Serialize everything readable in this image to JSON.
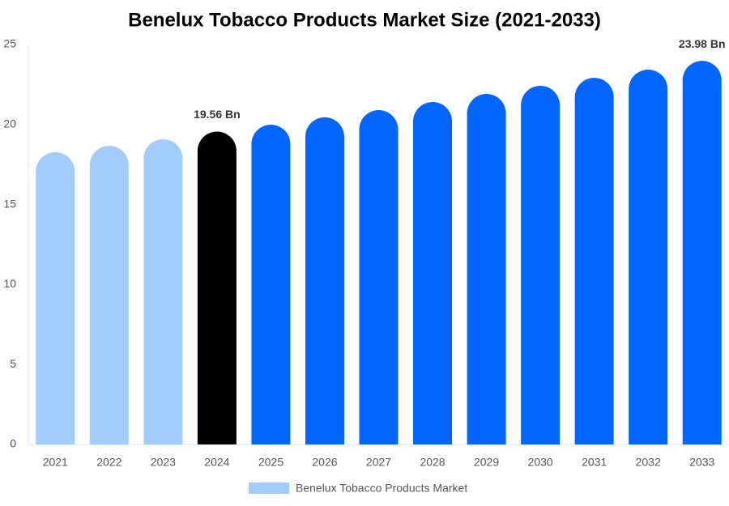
{
  "chart_data": {
    "type": "bar",
    "title": "Benelux Tobacco Products Market Size (2021-2033)",
    "categories": [
      "2021",
      "2022",
      "2023",
      "2024",
      "2025",
      "2026",
      "2027",
      "2028",
      "2029",
      "2030",
      "2031",
      "2032",
      "2033"
    ],
    "series": [
      {
        "name": "Benelux Tobacco Products Market",
        "color": "#a0cbfa",
        "values": [
          18.27,
          18.67,
          19.08,
          19.56,
          19.99,
          20.45,
          20.9,
          21.41,
          21.91,
          22.42,
          22.92,
          23.43,
          23.98
        ],
        "value_labels": [
          null,
          null,
          null,
          "19.56 Bn",
          null,
          null,
          null,
          null,
          null,
          null,
          null,
          null,
          "23.98 Bn"
        ],
        "colors": [
          "#a0cbfa",
          "#a0cbfa",
          "#a0cbfa",
          "#000000",
          "#0066ff",
          "#0066ff",
          "#0066ff",
          "#0066ff",
          "#0066ff",
          "#0066ff",
          "#0066ff",
          "#0066ff",
          "#0066ff"
        ]
      }
    ],
    "ylim": [
      0,
      25
    ],
    "yticks": [
      0,
      5,
      10,
      15,
      20,
      25
    ],
    "grid": false,
    "legend": "bottom"
  }
}
